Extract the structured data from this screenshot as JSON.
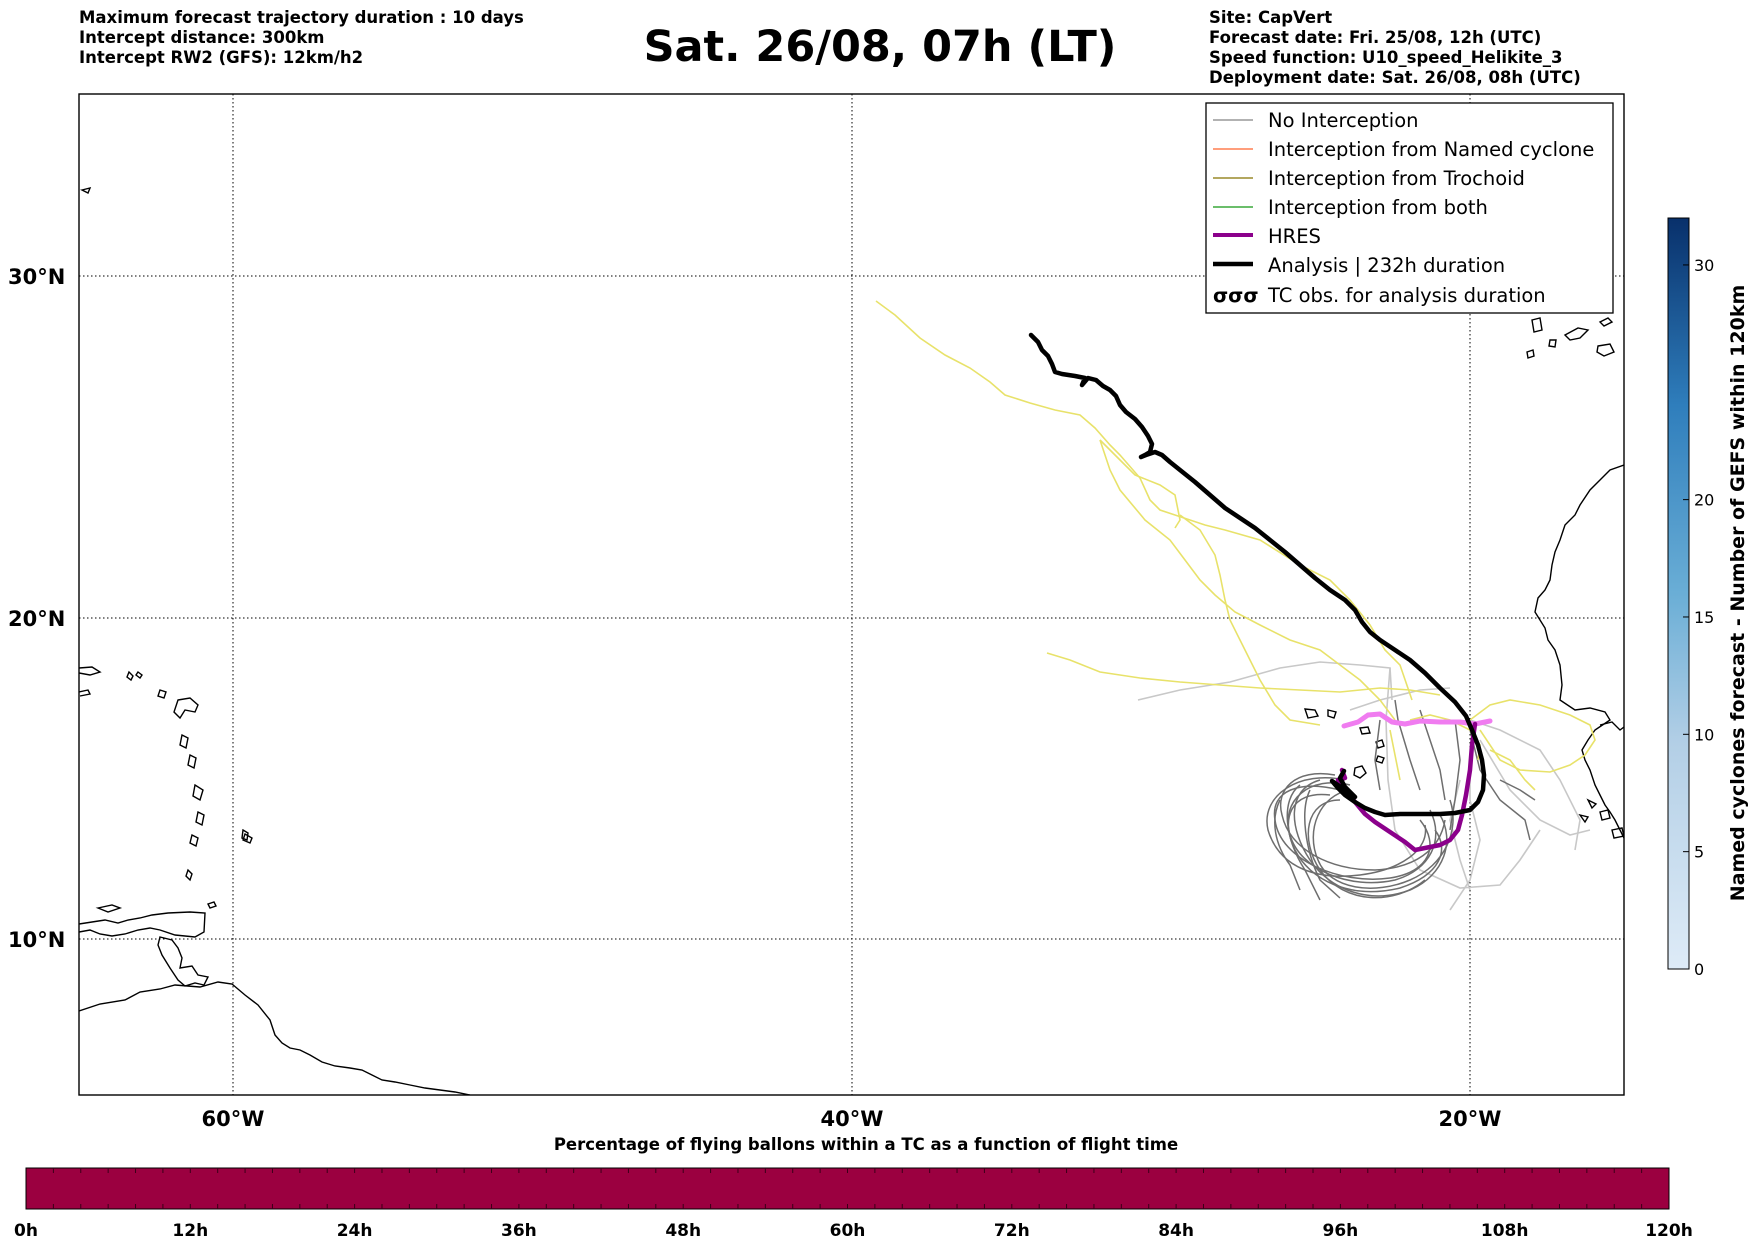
{
  "header_left": [
    "Maximum forecast trajectory duration : 10 days",
    "Intercept distance: 300km",
    "Intercept RW2 (GFS):  12km/h2"
  ],
  "title": "Sat. 26/08, 07h (LT)",
  "header_right": [
    "Site: CapVert",
    "Forecast date: Fri. 25/08, 12h (UTC)",
    "Speed function: U10_speed_Helikite_3",
    "Deployment date: Sat. 26/08, 08h (UTC)"
  ],
  "map": {
    "lat_labels": [
      "30°N",
      "20°N",
      "10°N"
    ],
    "lon_labels": [
      "60°W",
      "40°W",
      "20°W"
    ],
    "gridlines": true
  },
  "legend": [
    {
      "label": "No Interception",
      "color": "#999999",
      "style": "thin"
    },
    {
      "label": "Interception from Named cyclone",
      "color": "#ff7f50",
      "style": "thin"
    },
    {
      "label": "Interception from Trochoid",
      "color": "#9a8a2a",
      "style": "thin"
    },
    {
      "label": "Interception from both",
      "color": "#3aa83a",
      "style": "thin"
    },
    {
      "label": "HRES",
      "color": "#8b008b",
      "style": "thick"
    },
    {
      "label": "Analysis | 232h duration",
      "color": "#000000",
      "style": "thick"
    },
    {
      "label": "TC obs. for analysis duration",
      "color": "#000000",
      "style": "symbol",
      "symbol": "σσσ"
    }
  ],
  "colorbar_right": {
    "title": "Named cyclones forecast - Number of GEFS within 120km",
    "ticks": [
      "0",
      "5",
      "10",
      "15",
      "20",
      "30"
    ],
    "range": [
      0,
      32
    ]
  },
  "colorbar_bottom": {
    "title": "Percentage of flying ballons within a TC as a function of flight time",
    "ticks": [
      "0h",
      "12h",
      "24h",
      "36h",
      "48h",
      "60h",
      "72h",
      "84h",
      "96h",
      "108h",
      "120h"
    ],
    "fill_color": "#9b0040"
  }
}
